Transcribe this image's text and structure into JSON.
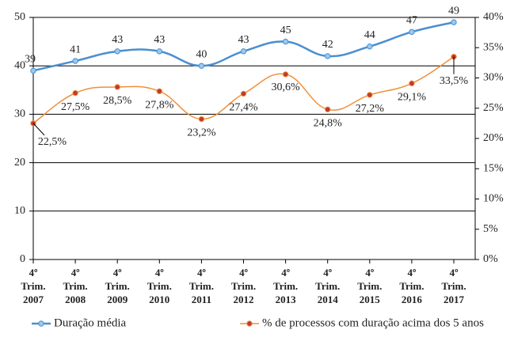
{
  "chart_data": {
    "type": "line",
    "categories": [
      [
        "4º",
        "Trim.",
        "2007"
      ],
      [
        "4º",
        "Trim.",
        "2008"
      ],
      [
        "4º",
        "Trim.",
        "2009"
      ],
      [
        "4º",
        "Trim.",
        "2010"
      ],
      [
        "4º",
        "Trim.",
        "2011"
      ],
      [
        "4º",
        "Trim.",
        "2012"
      ],
      [
        "4º",
        "Trim.",
        "2013"
      ],
      [
        "4º",
        "Trim.",
        "2014"
      ],
      [
        "4º",
        "Trim.",
        "2015"
      ],
      [
        "4º",
        "Trim.",
        "2016"
      ],
      [
        "4º",
        "Trim.",
        "2017"
      ]
    ],
    "series": [
      {
        "name": "Duração média",
        "color": "#4a8fd0",
        "values": [
          39,
          41,
          43,
          43,
          40,
          43,
          45,
          42,
          44,
          47,
          49
        ]
      },
      {
        "name": "% de processos com duração acima dos 5 anos",
        "color": "#f0903a",
        "axis": "y2",
        "values": [
          22.5,
          27.5,
          28.5,
          27.8,
          23.2,
          27.4,
          30.6,
          24.8,
          27.2,
          29.1,
          33.5
        ],
        "value_labels": [
          "22,5%",
          "27,5%",
          "28,5%",
          "27,8%",
          "23,2%",
          "27,4%",
          "30,6%",
          "24,8%",
          "27,2%",
          "29,1%",
          "33,5%"
        ]
      }
    ],
    "ylim": [
      0,
      50
    ],
    "yticks": [
      0,
      10,
      20,
      30,
      40,
      50
    ],
    "y2lim": [
      0,
      40
    ],
    "y2ticks": [
      {
        "value": 0,
        "label": "0%"
      },
      {
        "value": 5,
        "label": "5%"
      },
      {
        "value": 10,
        "label": "10%"
      },
      {
        "value": 15,
        "label": "15%"
      },
      {
        "value": 20,
        "label": "20%"
      },
      {
        "value": 25,
        "label": "25%"
      },
      {
        "value": 30,
        "label": "30%"
      },
      {
        "value": 35,
        "label": "35%"
      },
      {
        "value": 40,
        "label": "40%"
      }
    ],
    "grid": true,
    "legend": "bottom"
  }
}
